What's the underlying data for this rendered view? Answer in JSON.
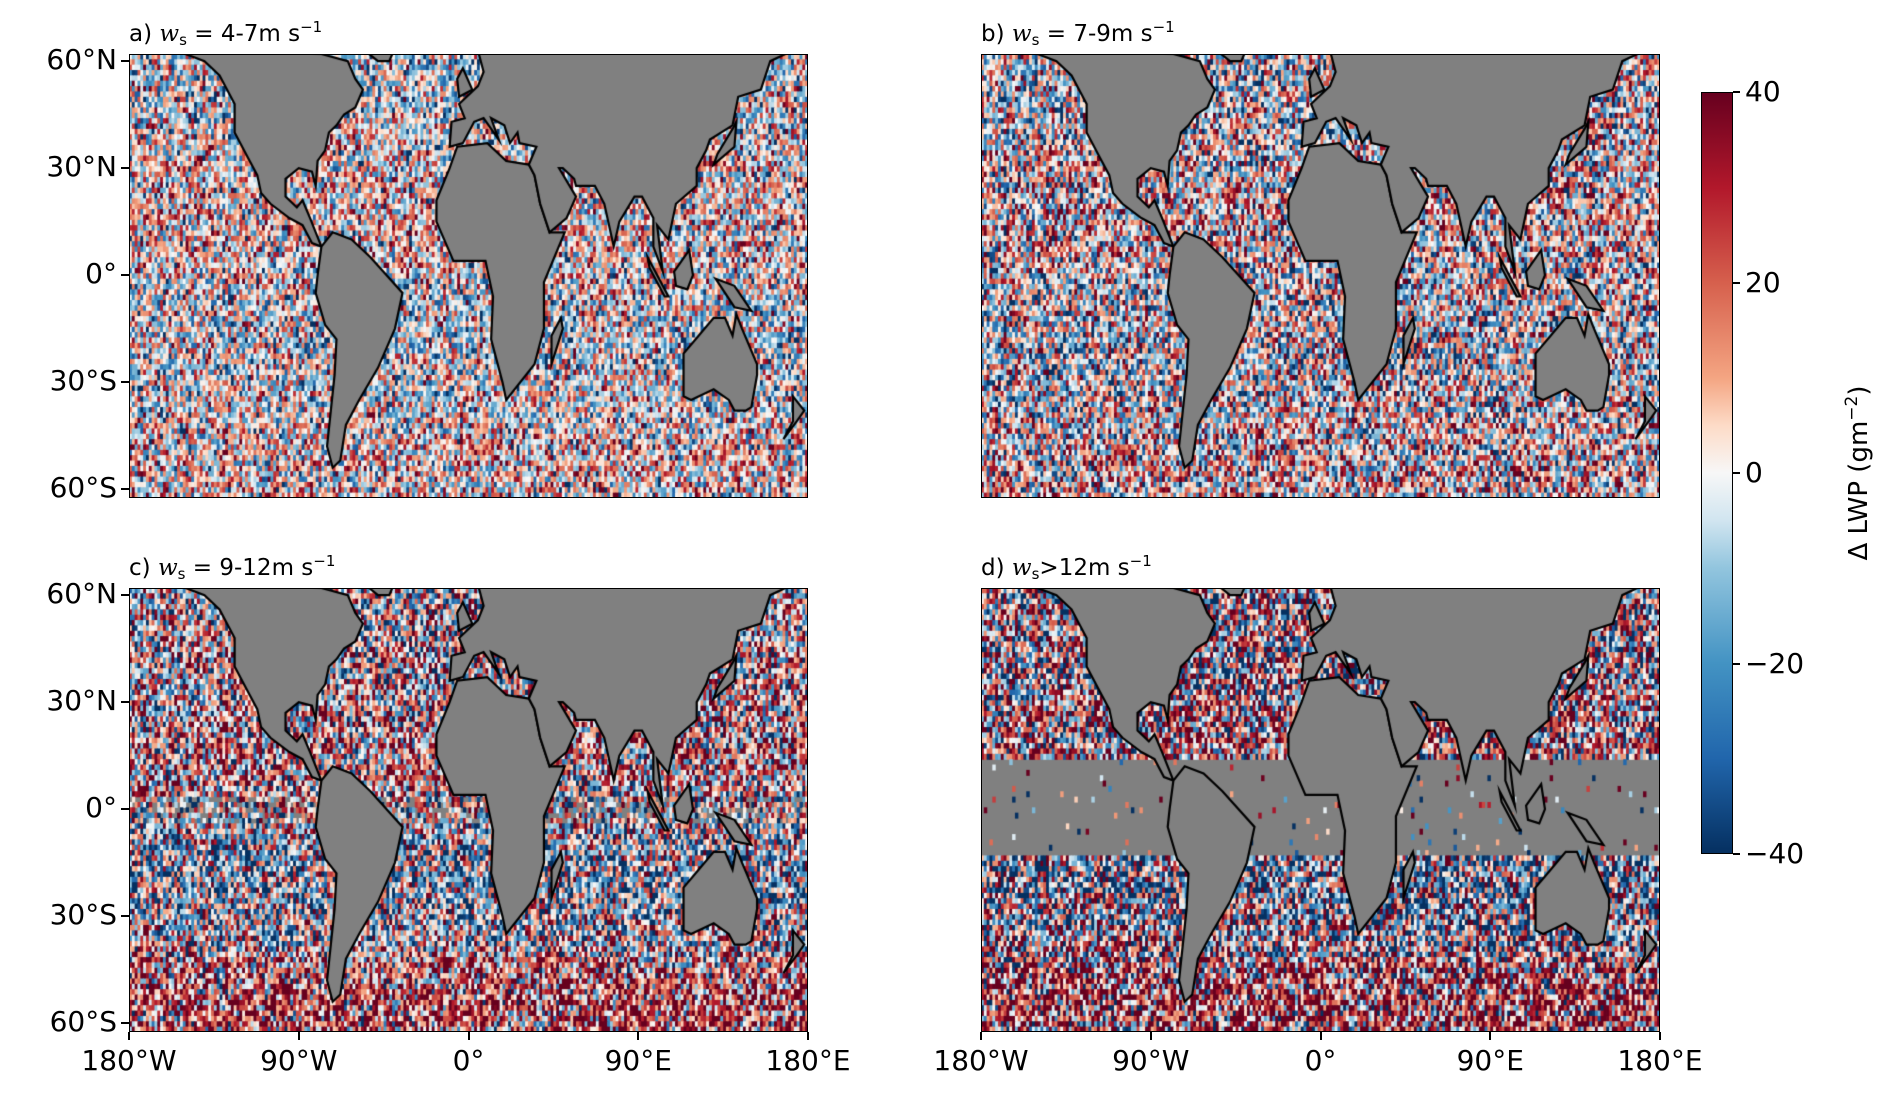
{
  "figure": {
    "colorbar": {
      "label_prefix": "Δ LWP (gm",
      "label_exp": "−2",
      "label_suffix": ")",
      "range": [
        -40,
        40
      ],
      "ticks": [
        "40",
        "20",
        "0",
        "−20",
        "−40"
      ],
      "tick_values": [
        40,
        20,
        0,
        -20,
        -40
      ],
      "colormap": "RdBu_r",
      "colors": [
        "#053061",
        "#2166ac",
        "#4393c3",
        "#92c5de",
        "#d1e5f0",
        "#f7f7f7",
        "#fddbc7",
        "#f4a582",
        "#d6604d",
        "#b2182b",
        "#67001f"
      ]
    },
    "land_color": "#808080",
    "coastline_color": "#000000",
    "lat_ticks": [
      "60°N",
      "30°N",
      "0°",
      "30°S",
      "60°S"
    ],
    "lat_tick_values": [
      60,
      30,
      0,
      -30,
      -60
    ],
    "lon_ticks": [
      "180°W",
      "90°W",
      "0°",
      "90°E",
      "180°E"
    ],
    "lon_tick_values": [
      -180,
      -90,
      0,
      90,
      180
    ],
    "lat_range": [
      -62.5,
      62
    ],
    "lon_range": [
      -180,
      180
    ],
    "panels": [
      {
        "id": "a",
        "label": "a)",
        "var": "w",
        "sub": "s",
        "op": " = ",
        "value": "4-7",
        "unit": "m s",
        "exp": "−1"
      },
      {
        "id": "b",
        "label": "b)",
        "var": "w",
        "sub": "s",
        "op": " = ",
        "value": "7-9",
        "unit": "m s",
        "exp": "−1"
      },
      {
        "id": "c",
        "label": "c)",
        "var": "w",
        "sub": "s",
        "op": " = ",
        "value": "9-12",
        "unit": "m s",
        "exp": "−1"
      },
      {
        "id": "d",
        "label": "d)",
        "var": "w",
        "sub": "s",
        "op": ">",
        "value": "12",
        "unit": "m s",
        "exp": "−1"
      }
    ]
  }
}
